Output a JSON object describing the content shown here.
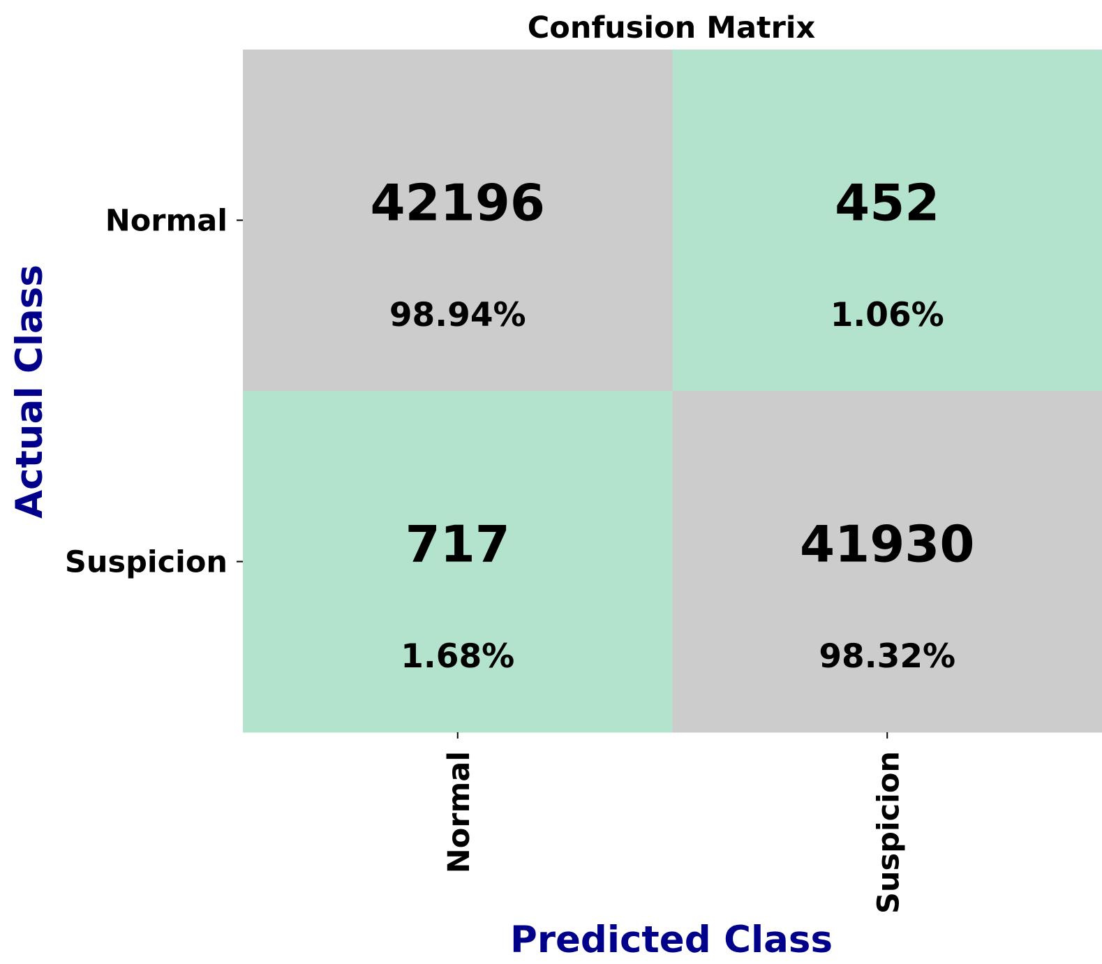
{
  "chart_data": {
    "type": "heatmap",
    "title": "Confusion Matrix",
    "xlabel": "Predicted Class",
    "ylabel": "Actual Class",
    "x_categories": [
      "Normal",
      "Suspicion"
    ],
    "y_categories": [
      "Normal",
      "Suspicion"
    ],
    "cells": [
      {
        "actual": "Normal",
        "predicted": "Normal",
        "count": 42196,
        "count_label": "42196",
        "percent": 98.94,
        "percent_label": "98.94%",
        "correct": true
      },
      {
        "actual": "Normal",
        "predicted": "Suspicion",
        "count": 452,
        "count_label": "452",
        "percent": 1.06,
        "percent_label": "1.06%",
        "correct": false
      },
      {
        "actual": "Suspicion",
        "predicted": "Normal",
        "count": 717,
        "count_label": "717",
        "percent": 1.68,
        "percent_label": "1.68%",
        "correct": false
      },
      {
        "actual": "Suspicion",
        "predicted": "Suspicion",
        "count": 41930,
        "count_label": "41930",
        "percent": 98.32,
        "percent_label": "98.32%",
        "correct": true
      }
    ],
    "colorbar": false,
    "grid": false
  },
  "colors": {
    "correct_cell": "#cccccc",
    "error_cell": "#b3e2cd",
    "axis_label": "#00008b",
    "text": "#000000"
  }
}
